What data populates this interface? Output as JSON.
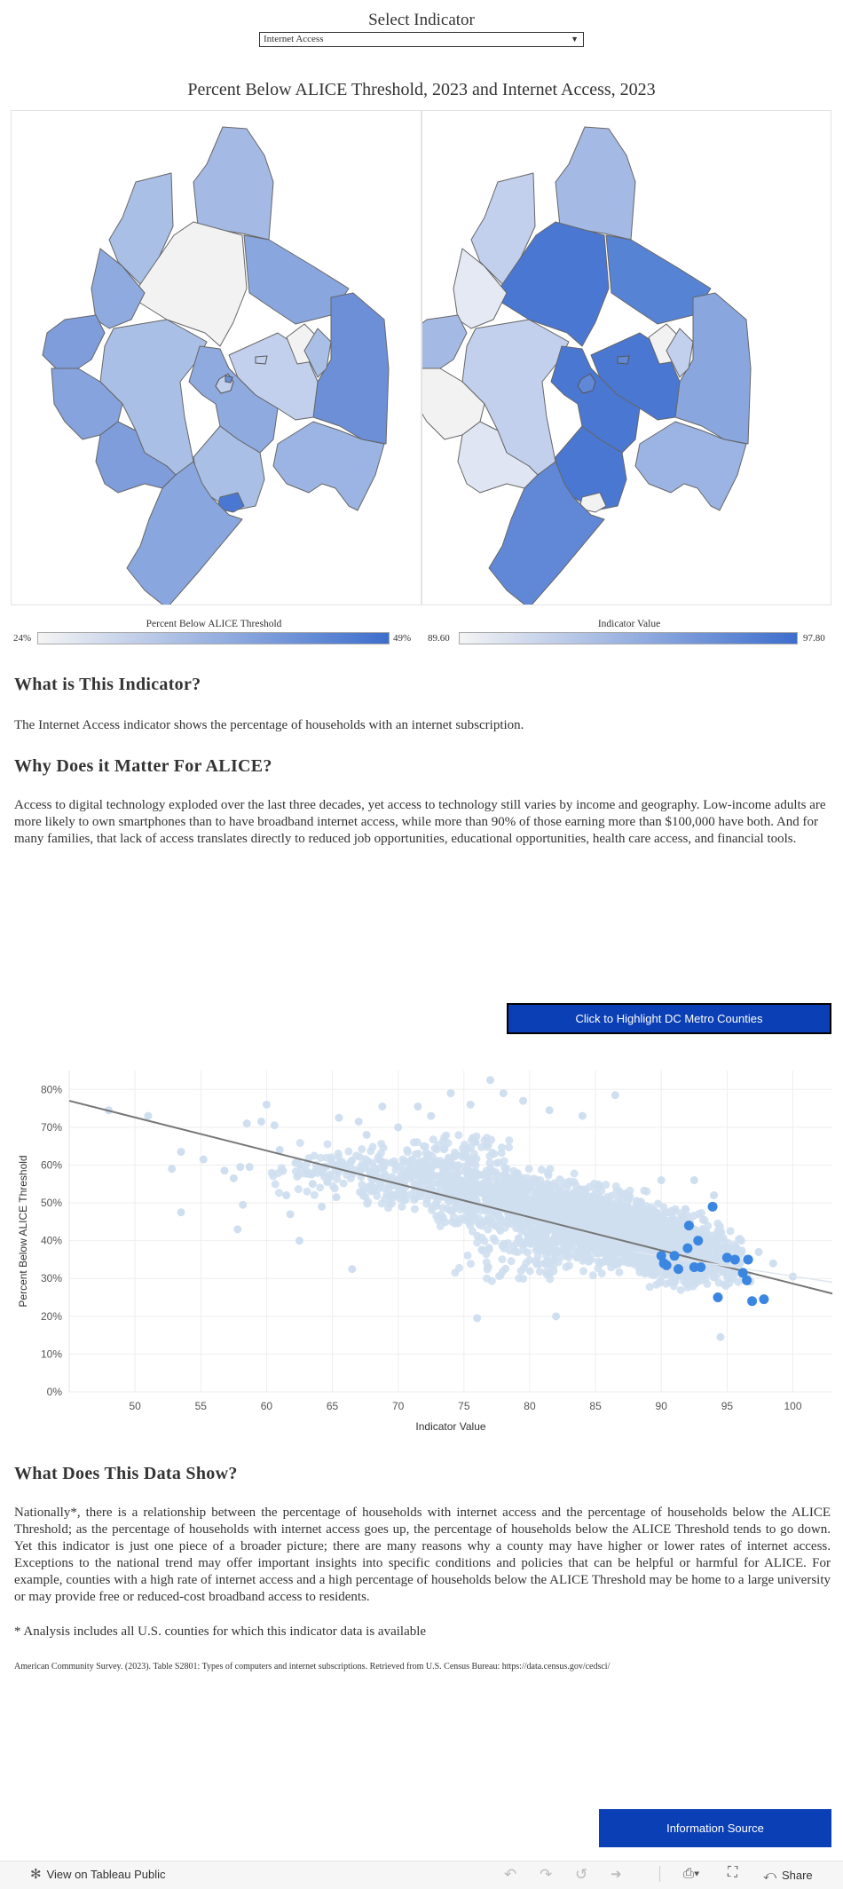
{
  "selector": {
    "title": "Select Indicator",
    "value": "Internet Access"
  },
  "map_section": {
    "title": "Percent Below ALICE Threshold, 2023 and Internet Access, 2023",
    "legend_left": {
      "title": "Percent Below ALICE Threshold",
      "min": "24%",
      "max": "49%"
    },
    "legend_right": {
      "title": "Indicator Value",
      "min": "89.60",
      "max": "97.80"
    },
    "colors": {
      "low": "#f4f4f4",
      "high": "#3d6ecd"
    }
  },
  "indicator_section": {
    "heading": "What is This Indicator?",
    "text": "The Internet Access indicator shows the percentage of households with an internet subscription."
  },
  "matter_section": {
    "heading": "Why Does it Matter For ALICE?",
    "text": "Access to digital technology exploded over the last three decades, yet access to technology still varies by income and geography. Low-income adults are more likely to own smartphones than to have broadband internet access, while more than 90% of those earning more than $100,000 have both. And for many families, that lack of access translates directly to reduced job opportunities, educational opportunities, health care access, and financial tools."
  },
  "highlight_button": {
    "label": "Click to Highlight DC Metro Counties"
  },
  "chart_data": {
    "type": "scatter",
    "xlabel": "Indicator Value",
    "ylabel": "Percent Below ALICE Threshold",
    "xlim": [
      45,
      103
    ],
    "ylim": [
      0,
      85
    ],
    "x_ticks": [
      50,
      55,
      60,
      65,
      70,
      75,
      80,
      85,
      90,
      95,
      100
    ],
    "y_ticks": [
      "0%",
      "10%",
      "20%",
      "30%",
      "40%",
      "50%",
      "60%",
      "70%",
      "80%"
    ],
    "grid": true,
    "trend_line": {
      "x": [
        45,
        103
      ],
      "y": [
        77,
        26
      ]
    },
    "colors": {
      "all_counties": "#cfdff0",
      "dc_metro": "#3a86e0",
      "trend": "#777777"
    },
    "dc_metro_points": [
      {
        "x": 93.9,
        "y": 49
      },
      {
        "x": 92.1,
        "y": 44
      },
      {
        "x": 92.8,
        "y": 40
      },
      {
        "x": 92.0,
        "y": 38
      },
      {
        "x": 90.0,
        "y": 36
      },
      {
        "x": 91.0,
        "y": 36
      },
      {
        "x": 95.0,
        "y": 35.5
      },
      {
        "x": 95.6,
        "y": 35
      },
      {
        "x": 96.6,
        "y": 35
      },
      {
        "x": 90.2,
        "y": 34
      },
      {
        "x": 90.4,
        "y": 33.5
      },
      {
        "x": 91.3,
        "y": 32.5
      },
      {
        "x": 92.5,
        "y": 33
      },
      {
        "x": 93.0,
        "y": 33
      },
      {
        "x": 96.2,
        "y": 31.5
      },
      {
        "x": 96.5,
        "y": 29.5
      },
      {
        "x": 94.3,
        "y": 25
      },
      {
        "x": 96.9,
        "y": 24
      },
      {
        "x": 97.8,
        "y": 24.5
      }
    ],
    "all_counties_points": [
      {
        "x": 48,
        "y": 74.5
      },
      {
        "x": 51,
        "y": 73
      },
      {
        "x": 53.5,
        "y": 63.5
      },
      {
        "x": 52.8,
        "y": 59
      },
      {
        "x": 53.5,
        "y": 47.5
      },
      {
        "x": 55.2,
        "y": 61.5
      },
      {
        "x": 56.8,
        "y": 58.5
      },
      {
        "x": 57.5,
        "y": 56.5
      },
      {
        "x": 58,
        "y": 59.5
      },
      {
        "x": 58.7,
        "y": 59.5
      },
      {
        "x": 58.2,
        "y": 49.5
      },
      {
        "x": 57.8,
        "y": 43
      },
      {
        "x": 58.5,
        "y": 71
      },
      {
        "x": 59.6,
        "y": 71.5
      },
      {
        "x": 60,
        "y": 76
      },
      {
        "x": 60.6,
        "y": 70.5
      },
      {
        "x": 61,
        "y": 64
      },
      {
        "x": 61.5,
        "y": 52
      },
      {
        "x": 61.8,
        "y": 47
      },
      {
        "x": 62.5,
        "y": 40
      },
      {
        "x": 63.5,
        "y": 55
      },
      {
        "x": 64.2,
        "y": 49
      },
      {
        "x": 65.3,
        "y": 51.5
      },
      {
        "x": 65.5,
        "y": 72.5
      },
      {
        "x": 66.5,
        "y": 32.5
      },
      {
        "x": 67,
        "y": 71.5
      },
      {
        "x": 67.6,
        "y": 68
      },
      {
        "x": 68.8,
        "y": 75.5
      },
      {
        "x": 70,
        "y": 70
      },
      {
        "x": 71.5,
        "y": 75.5
      },
      {
        "x": 72.5,
        "y": 73
      },
      {
        "x": 74,
        "y": 79
      },
      {
        "x": 75.5,
        "y": 76
      },
      {
        "x": 77,
        "y": 82.5
      },
      {
        "x": 78,
        "y": 79
      },
      {
        "x": 79.5,
        "y": 77
      },
      {
        "x": 81.5,
        "y": 74.5
      },
      {
        "x": 84,
        "y": 73
      },
      {
        "x": 86.5,
        "y": 78.5
      },
      {
        "x": 76,
        "y": 19.5
      },
      {
        "x": 82,
        "y": 20
      },
      {
        "x": 94.5,
        "y": 14.5
      },
      {
        "x": 100,
        "y": 30.5
      },
      {
        "x": 98.5,
        "y": 34
      },
      {
        "x": 97.4,
        "y": 37
      },
      {
        "x": 94,
        "y": 52
      },
      {
        "x": 92.5,
        "y": 56
      },
      {
        "x": 90,
        "y": 56
      }
    ],
    "cloud_density": [
      {
        "x": [
          60,
          70
        ],
        "y": [
          52,
          66
        ],
        "n": 110
      },
      {
        "x": [
          66,
          78
        ],
        "y": [
          48,
          64
        ],
        "n": 240
      },
      {
        "x": [
          72,
          84
        ],
        "y": [
          42,
          60
        ],
        "n": 520
      },
      {
        "x": [
          78,
          90
        ],
        "y": [
          36,
          56
        ],
        "n": 650
      },
      {
        "x": [
          84,
          95
        ],
        "y": [
          30,
          50
        ],
        "n": 620
      },
      {
        "x": [
          88,
          97
        ],
        "y": [
          26,
          44
        ],
        "n": 380
      },
      {
        "x": [
          74,
          88
        ],
        "y": [
          28,
          46
        ],
        "n": 150
      },
      {
        "x": [
          70,
          80
        ],
        "y": [
          58,
          70
        ],
        "n": 60
      }
    ]
  },
  "data_show_section": {
    "heading": "What Does This Data Show?",
    "text": "Nationally*, there is a relationship between the percentage of households with internet access and the percentage of households below the ALICE Threshold; as the percentage of households with internet access goes up, the percentage of households below the ALICE Threshold tends to go down. Yet this indicator is just one piece of a broader picture; there are many reasons why a county may have higher or lower rates of internet access. Exceptions to the national trend may offer important insights into specific conditions and policies that can be helpful or harmful for ALICE. For example, counties with a high rate of internet access and a high percentage of households below the ALICE Threshold may be home to a large university or may provide free or reduced-cost broadband access to residents.",
    "note": "* Analysis includes all U.S. counties for which this indicator data is available"
  },
  "citation": "American Community Survey. (2023). Table S2801: Types of computers and internet subscriptions. Retrieved from U.S. Census Bureau: https://data.census.gov/cedsci/",
  "info_button": {
    "label": "Information Source"
  },
  "footer": {
    "view_label": "View on Tableau Public",
    "share_label": "Share"
  }
}
